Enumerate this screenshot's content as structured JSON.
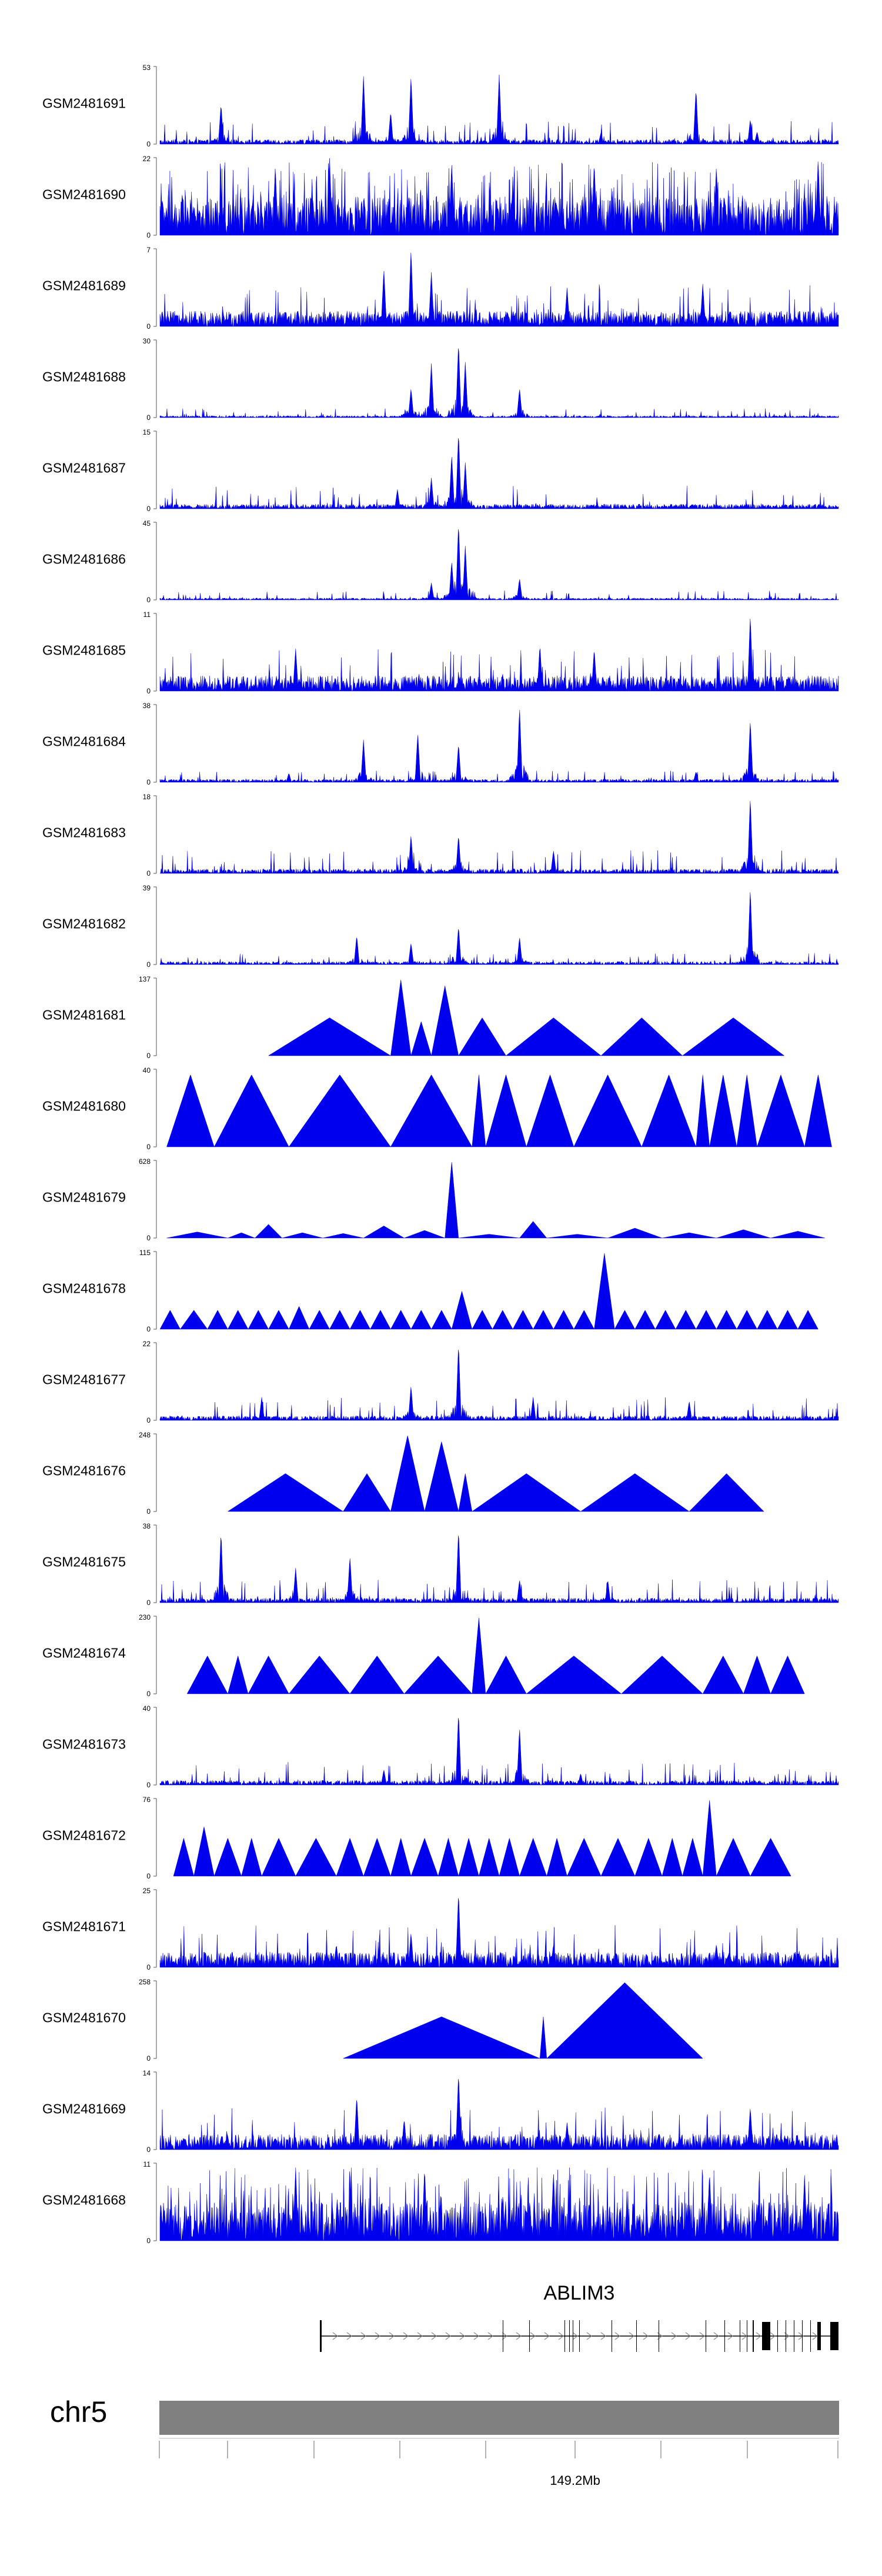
{
  "colors": {
    "signal": "#0000ee",
    "chromosome_bar": "#808080",
    "axis": "#555555",
    "tick": "#999999",
    "gene": "#000000"
  },
  "chart_data": {
    "type": "area",
    "title": "",
    "genome": {
      "chromosome": "chr5",
      "tick_label": "149.2Mb",
      "gene_name": "ABLIM3"
    },
    "tracks": [
      {
        "name": "GSM2481691",
        "ymax": 53,
        "ymin": 0,
        "style": "noisy",
        "peaks": [
          [
            0.09,
            0.52
          ],
          [
            0.3,
            0.88
          ],
          [
            0.34,
            0.42
          ],
          [
            0.37,
            0.88
          ],
          [
            0.5,
            0.9
          ],
          [
            0.79,
            0.72
          ],
          [
            0.87,
            0.32
          ],
          [
            0.88,
            0.16
          ],
          [
            0.65,
            0.15
          ]
        ]
      },
      {
        "name": "GSM2481690",
        "ymax": 22,
        "ymin": 0,
        "style": "spiky_dense",
        "peaks": [
          [
            0.25,
            1.0
          ],
          [
            0.17,
            0.9
          ],
          [
            0.43,
            0.95
          ],
          [
            0.64,
            0.95
          ],
          [
            0.82,
            0.9
          ],
          [
            0.97,
            1.0
          ]
        ]
      },
      {
        "name": "GSM2481689",
        "ymax": 7,
        "ymin": 0,
        "style": "dense",
        "peaks": [
          [
            0.37,
            1.0
          ],
          [
            0.33,
            0.75
          ],
          [
            0.4,
            0.7
          ],
          [
            0.8,
            0.55
          ],
          [
            0.6,
            0.5
          ]
        ]
      },
      {
        "name": "GSM2481688",
        "ymax": 30,
        "ymin": 0,
        "style": "low",
        "peaks": [
          [
            0.37,
            0.38
          ],
          [
            0.4,
            0.7
          ],
          [
            0.44,
            0.98
          ],
          [
            0.45,
            0.72
          ],
          [
            0.53,
            0.38
          ]
        ]
      },
      {
        "name": "GSM2481687",
        "ymax": 15,
        "ymin": 0,
        "style": "noisy",
        "peaks": [
          [
            0.35,
            0.25
          ],
          [
            0.4,
            0.4
          ],
          [
            0.43,
            0.7
          ],
          [
            0.44,
            1.0
          ],
          [
            0.45,
            0.6
          ]
        ]
      },
      {
        "name": "GSM2481686",
        "ymax": 45,
        "ymin": 0,
        "style": "low",
        "peaks": [
          [
            0.4,
            0.22
          ],
          [
            0.43,
            0.5
          ],
          [
            0.44,
            1.0
          ],
          [
            0.45,
            0.7
          ],
          [
            0.53,
            0.28
          ]
        ]
      },
      {
        "name": "GSM2481685",
        "ymax": 11,
        "ymin": 0,
        "style": "dense",
        "peaks": [
          [
            0.87,
            0.98
          ],
          [
            0.2,
            0.55
          ],
          [
            0.56,
            0.6
          ],
          [
            0.64,
            0.55
          ]
        ]
      },
      {
        "name": "GSM2481684",
        "ymax": 38,
        "ymin": 0,
        "style": "peaks",
        "peaks": [
          [
            0.19,
            0.12
          ],
          [
            0.3,
            0.55
          ],
          [
            0.38,
            0.64
          ],
          [
            0.44,
            0.5
          ],
          [
            0.53,
            0.98
          ],
          [
            0.79,
            0.14
          ],
          [
            0.87,
            0.8
          ]
        ]
      },
      {
        "name": "GSM2481683",
        "ymax": 18,
        "ymin": 0,
        "style": "noisy",
        "peaks": [
          [
            0.87,
            0.98
          ],
          [
            0.37,
            0.5
          ],
          [
            0.44,
            0.5
          ],
          [
            0.58,
            0.3
          ]
        ]
      },
      {
        "name": "GSM2481682",
        "ymax": 39,
        "ymin": 0,
        "style": "peaks",
        "peaks": [
          [
            0.29,
            0.38
          ],
          [
            0.37,
            0.28
          ],
          [
            0.44,
            0.5
          ],
          [
            0.53,
            0.36
          ],
          [
            0.87,
            0.98
          ]
        ]
      },
      {
        "name": "GSM2481681",
        "ymax": 137,
        "ymin": 0,
        "style": "triangles",
        "segments": [
          [
            0.16,
            0.34,
            0.5
          ],
          [
            0.34,
            0.37,
            1.0
          ],
          [
            0.37,
            0.4,
            0.45
          ],
          [
            0.4,
            0.44,
            0.92
          ],
          [
            0.44,
            0.51,
            0.5
          ],
          [
            0.51,
            0.65,
            0.5
          ],
          [
            0.65,
            0.77,
            0.5
          ],
          [
            0.77,
            0.92,
            0.5
          ]
        ]
      },
      {
        "name": "GSM2481680",
        "ymax": 40,
        "ymin": 0,
        "style": "triangles",
        "segments": [
          [
            0.01,
            0.08,
            0.95
          ],
          [
            0.08,
            0.19,
            0.95
          ],
          [
            0.19,
            0.34,
            0.95
          ],
          [
            0.34,
            0.46,
            0.95
          ],
          [
            0.46,
            0.48,
            0.95
          ],
          [
            0.48,
            0.54,
            0.95
          ],
          [
            0.54,
            0.61,
            0.95
          ],
          [
            0.61,
            0.71,
            0.95
          ],
          [
            0.71,
            0.79,
            0.95
          ],
          [
            0.79,
            0.81,
            0.95
          ],
          [
            0.81,
            0.85,
            0.95
          ],
          [
            0.85,
            0.88,
            0.95
          ],
          [
            0.88,
            0.95,
            0.95
          ],
          [
            0.95,
            0.99,
            0.95
          ]
        ]
      },
      {
        "name": "GSM2481679",
        "ymax": 628,
        "ymin": 0,
        "style": "triangles",
        "segments": [
          [
            0.01,
            0.1,
            0.08
          ],
          [
            0.1,
            0.14,
            0.07
          ],
          [
            0.14,
            0.18,
            0.18
          ],
          [
            0.18,
            0.24,
            0.07
          ],
          [
            0.24,
            0.3,
            0.06
          ],
          [
            0.3,
            0.36,
            0.16
          ],
          [
            0.36,
            0.42,
            0.1
          ],
          [
            0.42,
            0.44,
            1.0
          ],
          [
            0.44,
            0.53,
            0.05
          ],
          [
            0.53,
            0.57,
            0.22
          ],
          [
            0.57,
            0.66,
            0.05
          ],
          [
            0.66,
            0.74,
            0.13
          ],
          [
            0.74,
            0.82,
            0.07
          ],
          [
            0.82,
            0.9,
            0.11
          ],
          [
            0.9,
            0.98,
            0.09
          ]
        ]
      },
      {
        "name": "GSM2481678",
        "ymax": 115,
        "ymin": 0,
        "style": "triangles",
        "segments": [
          [
            0.0,
            0.03,
            0.25
          ],
          [
            0.03,
            0.07,
            0.25
          ],
          [
            0.07,
            0.1,
            0.25
          ],
          [
            0.1,
            0.13,
            0.25
          ],
          [
            0.13,
            0.16,
            0.25
          ],
          [
            0.16,
            0.19,
            0.25
          ],
          [
            0.19,
            0.22,
            0.3
          ],
          [
            0.22,
            0.25,
            0.25
          ],
          [
            0.25,
            0.28,
            0.25
          ],
          [
            0.28,
            0.31,
            0.25
          ],
          [
            0.31,
            0.34,
            0.25
          ],
          [
            0.34,
            0.37,
            0.25
          ],
          [
            0.37,
            0.4,
            0.25
          ],
          [
            0.4,
            0.43,
            0.25
          ],
          [
            0.43,
            0.46,
            0.5
          ],
          [
            0.46,
            0.49,
            0.25
          ],
          [
            0.49,
            0.52,
            0.25
          ],
          [
            0.52,
            0.55,
            0.25
          ],
          [
            0.55,
            0.58,
            0.25
          ],
          [
            0.58,
            0.61,
            0.25
          ],
          [
            0.61,
            0.64,
            0.25
          ],
          [
            0.64,
            0.67,
            1.0
          ],
          [
            0.67,
            0.7,
            0.25
          ],
          [
            0.7,
            0.73,
            0.25
          ],
          [
            0.73,
            0.76,
            0.25
          ],
          [
            0.76,
            0.79,
            0.25
          ],
          [
            0.79,
            0.82,
            0.25
          ],
          [
            0.82,
            0.85,
            0.25
          ],
          [
            0.85,
            0.88,
            0.25
          ],
          [
            0.88,
            0.91,
            0.25
          ],
          [
            0.91,
            0.94,
            0.25
          ],
          [
            0.94,
            0.97,
            0.25
          ]
        ]
      },
      {
        "name": "GSM2481677",
        "ymax": 22,
        "ymin": 0,
        "style": "noisy",
        "peaks": [
          [
            0.37,
            0.45
          ],
          [
            0.44,
            1.0
          ],
          [
            0.15,
            0.3
          ],
          [
            0.55,
            0.3
          ],
          [
            0.78,
            0.25
          ]
        ]
      },
      {
        "name": "GSM2481676",
        "ymax": 248,
        "ymin": 0,
        "style": "triangles",
        "segments": [
          [
            0.1,
            0.27,
            0.5
          ],
          [
            0.27,
            0.34,
            0.5
          ],
          [
            0.34,
            0.39,
            1.0
          ],
          [
            0.39,
            0.44,
            0.92
          ],
          [
            0.44,
            0.46,
            0.5
          ],
          [
            0.46,
            0.62,
            0.5
          ],
          [
            0.62,
            0.78,
            0.5
          ],
          [
            0.78,
            0.89,
            0.5
          ]
        ]
      },
      {
        "name": "GSM2481675",
        "ymax": 38,
        "ymin": 0,
        "style": "noisy",
        "peaks": [
          [
            0.09,
            0.92
          ],
          [
            0.2,
            0.45
          ],
          [
            0.28,
            0.6
          ],
          [
            0.44,
            0.95
          ],
          [
            0.53,
            0.3
          ],
          [
            0.66,
            0.3
          ]
        ]
      },
      {
        "name": "GSM2481674",
        "ymax": 230,
        "ymin": 0,
        "style": "triangles",
        "segments": [
          [
            0.04,
            0.1,
            0.5
          ],
          [
            0.1,
            0.13,
            0.5
          ],
          [
            0.13,
            0.19,
            0.5
          ],
          [
            0.19,
            0.28,
            0.5
          ],
          [
            0.28,
            0.36,
            0.5
          ],
          [
            0.36,
            0.46,
            0.5
          ],
          [
            0.46,
            0.48,
            1.0
          ],
          [
            0.48,
            0.54,
            0.5
          ],
          [
            0.54,
            0.68,
            0.5
          ],
          [
            0.68,
            0.8,
            0.5
          ],
          [
            0.8,
            0.86,
            0.5
          ],
          [
            0.86,
            0.9,
            0.5
          ],
          [
            0.9,
            0.95,
            0.5
          ]
        ]
      },
      {
        "name": "GSM2481673",
        "ymax": 40,
        "ymin": 0,
        "style": "noisy",
        "peaks": [
          [
            0.44,
            0.95
          ],
          [
            0.53,
            0.75
          ],
          [
            0.33,
            0.2
          ],
          [
            0.62,
            0.15
          ]
        ]
      },
      {
        "name": "GSM2481672",
        "ymax": 76,
        "ymin": 0,
        "style": "triangles",
        "segments": [
          [
            0.02,
            0.05,
            0.5
          ],
          [
            0.05,
            0.08,
            0.65
          ],
          [
            0.08,
            0.12,
            0.5
          ],
          [
            0.12,
            0.15,
            0.5
          ],
          [
            0.15,
            0.2,
            0.5
          ],
          [
            0.2,
            0.26,
            0.5
          ],
          [
            0.26,
            0.3,
            0.5
          ],
          [
            0.3,
            0.34,
            0.5
          ],
          [
            0.34,
            0.37,
            0.5
          ],
          [
            0.37,
            0.41,
            0.5
          ],
          [
            0.41,
            0.44,
            0.5
          ],
          [
            0.44,
            0.47,
            0.5
          ],
          [
            0.47,
            0.5,
            0.5
          ],
          [
            0.5,
            0.53,
            0.5
          ],
          [
            0.53,
            0.57,
            0.5
          ],
          [
            0.57,
            0.6,
            0.5
          ],
          [
            0.6,
            0.65,
            0.5
          ],
          [
            0.65,
            0.7,
            0.5
          ],
          [
            0.7,
            0.74,
            0.5
          ],
          [
            0.74,
            0.77,
            0.5
          ],
          [
            0.77,
            0.8,
            0.5
          ],
          [
            0.8,
            0.82,
            1.0
          ],
          [
            0.82,
            0.87,
            0.5
          ],
          [
            0.87,
            0.93,
            0.5
          ]
        ]
      },
      {
        "name": "GSM2481671",
        "ymax": 25,
        "ymin": 0,
        "style": "dense",
        "peaks": [
          [
            0.44,
            0.98
          ],
          [
            0.37,
            0.45
          ],
          [
            0.26,
            0.3
          ],
          [
            0.58,
            0.3
          ],
          [
            0.82,
            0.3
          ]
        ]
      },
      {
        "name": "GSM2481670",
        "ymax": 258,
        "ymin": 0,
        "style": "triangles",
        "segments": [
          [
            0.27,
            0.56,
            0.55
          ],
          [
            0.56,
            0.57,
            0.55
          ],
          [
            0.57,
            0.8,
            1.0
          ]
        ]
      },
      {
        "name": "GSM2481669",
        "ymax": 14,
        "ymin": 0,
        "style": "dense",
        "peaks": [
          [
            0.44,
            1.0
          ],
          [
            0.29,
            0.7
          ],
          [
            0.36,
            0.4
          ],
          [
            0.87,
            0.55
          ],
          [
            0.6,
            0.35
          ]
        ]
      },
      {
        "name": "GSM2481668",
        "ymax": 11,
        "ymin": 0,
        "style": "spiky_dense",
        "peaks": [
          [
            0.2,
            0.95
          ],
          [
            0.39,
            0.95
          ],
          [
            0.58,
            0.9
          ],
          [
            0.81,
            0.9
          ],
          [
            0.95,
            0.85
          ]
        ]
      }
    ]
  }
}
